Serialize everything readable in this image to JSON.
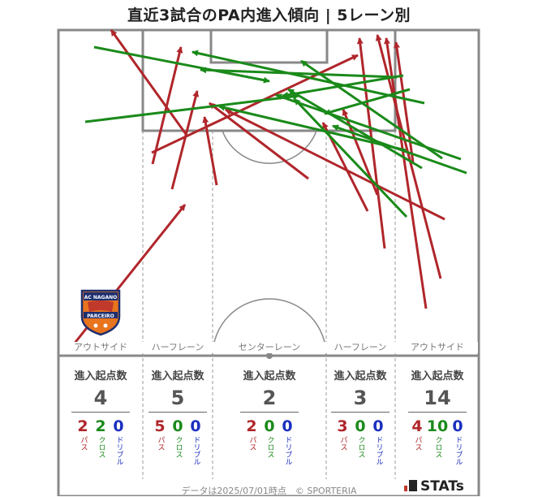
{
  "title": "直近3試合のPA内進入傾向 | 5レーン別",
  "lanes": [
    {
      "name": "アウトサイド",
      "label_head": "進入起点数",
      "total": "4",
      "pass": "2",
      "cross": "2",
      "dribble": "0"
    },
    {
      "name": "ハーフレーン",
      "label_head": "進入起点数",
      "total": "5",
      "pass": "5",
      "cross": "0",
      "dribble": "0"
    },
    {
      "name": "センターレーン",
      "label_head": "進入起点数",
      "total": "2",
      "pass": "2",
      "cross": "0",
      "dribble": "0"
    },
    {
      "name": "ハーフレーン",
      "label_head": "進入起点数",
      "total": "3",
      "pass": "3",
      "cross": "0",
      "dribble": "0"
    },
    {
      "name": "アウトサイド",
      "label_head": "進入起点数",
      "total": "14",
      "pass": "4",
      "cross": "10",
      "dribble": "0"
    }
  ],
  "labels": {
    "pass": "パス",
    "cross": "クロス",
    "dribble": "ドリブル"
  },
  "footer": "データは2025/07/01時点　© SPORTERIA",
  "brand": "STATs",
  "logo": {
    "top": "AC NAGANO",
    "middle": "PARCEIRO"
  },
  "colors": {
    "pass": "#b0262b",
    "cross": "#1a8a1a",
    "dribble": "#1b2fbf"
  },
  "chart_data": {
    "type": "arrow-map",
    "arrows": [
      {
        "kind": "pass",
        "from": [
          90,
          425
        ],
        "to": [
          228,
          252
        ]
      },
      {
        "kind": "pass",
        "from": [
          229,
          165
        ],
        "to": [
          137,
          37
        ]
      },
      {
        "kind": "pass",
        "from": [
          188,
          202
        ],
        "to": [
          223,
          58
        ]
      },
      {
        "kind": "pass",
        "from": [
          212,
          233
        ],
        "to": [
          243,
          112
        ]
      },
      {
        "kind": "pass",
        "from": [
          267,
          228
        ],
        "to": [
          252,
          144
        ]
      },
      {
        "kind": "pass",
        "from": [
          187,
          188
        ],
        "to": [
          441,
          68
        ]
      },
      {
        "kind": "pass",
        "from": [
          380,
          220
        ],
        "to": [
          258,
          127
        ]
      },
      {
        "kind": "pass",
        "from": [
          548,
          270
        ],
        "to": [
          278,
          135
        ]
      },
      {
        "kind": "pass",
        "from": [
          453,
          260
        ],
        "to": [
          398,
          151
        ]
      },
      {
        "kind": "pass",
        "from": [
          474,
          306
        ],
        "to": [
          443,
          47
        ]
      },
      {
        "kind": "pass",
        "from": [
          543,
          343
        ],
        "to": [
          465,
          43
        ]
      },
      {
        "kind": "pass",
        "from": [
          525,
          380
        ],
        "to": [
          476,
          47
        ]
      },
      {
        "kind": "pass",
        "from": [
          509,
          200
        ],
        "to": [
          488,
          52
        ]
      },
      {
        "kind": "pass",
        "from": [
          465,
          240
        ],
        "to": [
          423,
          135
        ]
      },
      {
        "kind": "cross",
        "from": [
          116,
          58
        ],
        "to": [
          332,
          100
        ]
      },
      {
        "kind": "cross",
        "from": [
          105,
          150
        ],
        "to": [
          368,
          118
        ]
      },
      {
        "kind": "cross",
        "from": [
          497,
          93
        ],
        "to": [
          348,
          118
        ]
      },
      {
        "kind": "cross",
        "from": [
          523,
          127
        ],
        "to": [
          237,
          64
        ]
      },
      {
        "kind": "cross",
        "from": [
          505,
          110
        ],
        "to": [
          400,
          140
        ]
      },
      {
        "kind": "cross",
        "from": [
          575,
          213
        ],
        "to": [
          410,
          155
        ]
      },
      {
        "kind": "cross",
        "from": [
          568,
          196
        ],
        "to": [
          340,
          117
        ]
      },
      {
        "kind": "cross",
        "from": [
          500,
          185
        ],
        "to": [
          270,
          131
        ]
      },
      {
        "kind": "cross",
        "from": [
          489,
          95
        ],
        "to": [
          247,
          86
        ]
      },
      {
        "kind": "cross",
        "from": [
          501,
          267
        ],
        "to": [
          363,
          122
        ]
      },
      {
        "kind": "cross",
        "from": [
          545,
          195
        ],
        "to": [
          371,
          75
        ]
      },
      {
        "kind": "cross",
        "from": [
          520,
          207
        ],
        "to": [
          355,
          110
        ]
      }
    ]
  }
}
